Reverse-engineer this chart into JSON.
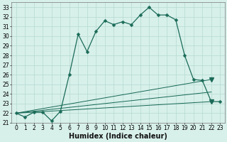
{
  "xlabel": "Humidex (Indice chaleur)",
  "xlim": [
    -0.5,
    23.5
  ],
  "ylim": [
    21,
    33.5
  ],
  "xticks": [
    0,
    1,
    2,
    3,
    4,
    5,
    6,
    7,
    8,
    9,
    10,
    11,
    12,
    13,
    14,
    15,
    16,
    17,
    18,
    19,
    20,
    21,
    22,
    23
  ],
  "yticks": [
    21,
    22,
    23,
    24,
    25,
    26,
    27,
    28,
    29,
    30,
    31,
    32,
    33
  ],
  "bg_color": "#d8f0ea",
  "grid_color": "#b8ddd4",
  "line_color": "#1a6b58",
  "main_curve": {
    "x": [
      0,
      1,
      2,
      3,
      4,
      5,
      6,
      7,
      8,
      9,
      10,
      11,
      12,
      13,
      14,
      15,
      16,
      17,
      18,
      19,
      20,
      21,
      22,
      23
    ],
    "y": [
      22.0,
      21.6,
      22.1,
      22.1,
      21.2,
      22.2,
      26.0,
      30.2,
      28.4,
      30.5,
      31.6,
      31.2,
      31.5,
      31.2,
      32.2,
      33.0,
      32.2,
      32.2,
      31.7,
      28.0,
      25.5,
      25.4,
      23.2,
      23.2
    ]
  },
  "linear_lines": [
    {
      "x": [
        0,
        22
      ],
      "y": [
        22.0,
        25.5
      ],
      "has_triangle": true,
      "triangle_x": 22,
      "triangle_y": 25.5
    },
    {
      "x": [
        0,
        22
      ],
      "y": [
        22.0,
        24.2
      ],
      "has_triangle": false
    },
    {
      "x": [
        0,
        22
      ],
      "y": [
        22.0,
        23.2
      ],
      "has_triangle": true,
      "triangle_x": 22,
      "triangle_y": 23.2
    }
  ],
  "tick_fontsize": 5.5,
  "label_fontsize": 7,
  "linewidth": 0.9,
  "markersize": 2.5
}
